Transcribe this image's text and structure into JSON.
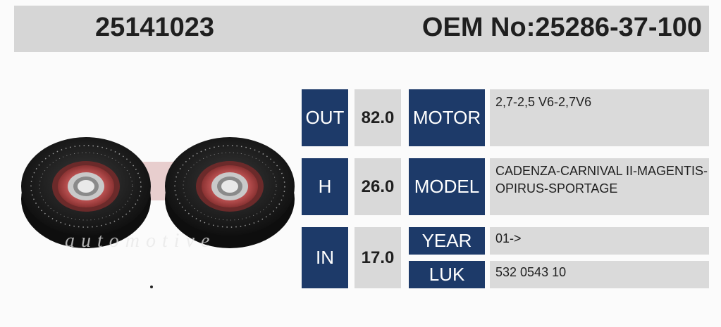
{
  "header": {
    "part_number": "25141023",
    "oem": "OEM No:25286-37-100"
  },
  "image": {
    "watermark": "automotive"
  },
  "specs": [
    {
      "label": "OUT",
      "value": "82.0"
    },
    {
      "label": "H",
      "value": "26.0"
    },
    {
      "label": "IN",
      "value": "17.0"
    }
  ],
  "details": {
    "motor": {
      "label": "MOTOR",
      "value": "2,7-2,5 V6-2,7V6"
    },
    "model": {
      "label": "MODEL",
      "line1": "CADENZA-CARNIVAL II-MAGENTIS-",
      "line2": "OPIRUS-SPORTAGE"
    },
    "year": {
      "label": "YEAR",
      "value": "01->"
    },
    "luk": {
      "label": "LUK",
      "value": "532 0543 10"
    }
  },
  "colors": {
    "navy": "#1d3a69",
    "gray_cell": "#d9d9d9",
    "header_gray": "#d6d6d6"
  }
}
